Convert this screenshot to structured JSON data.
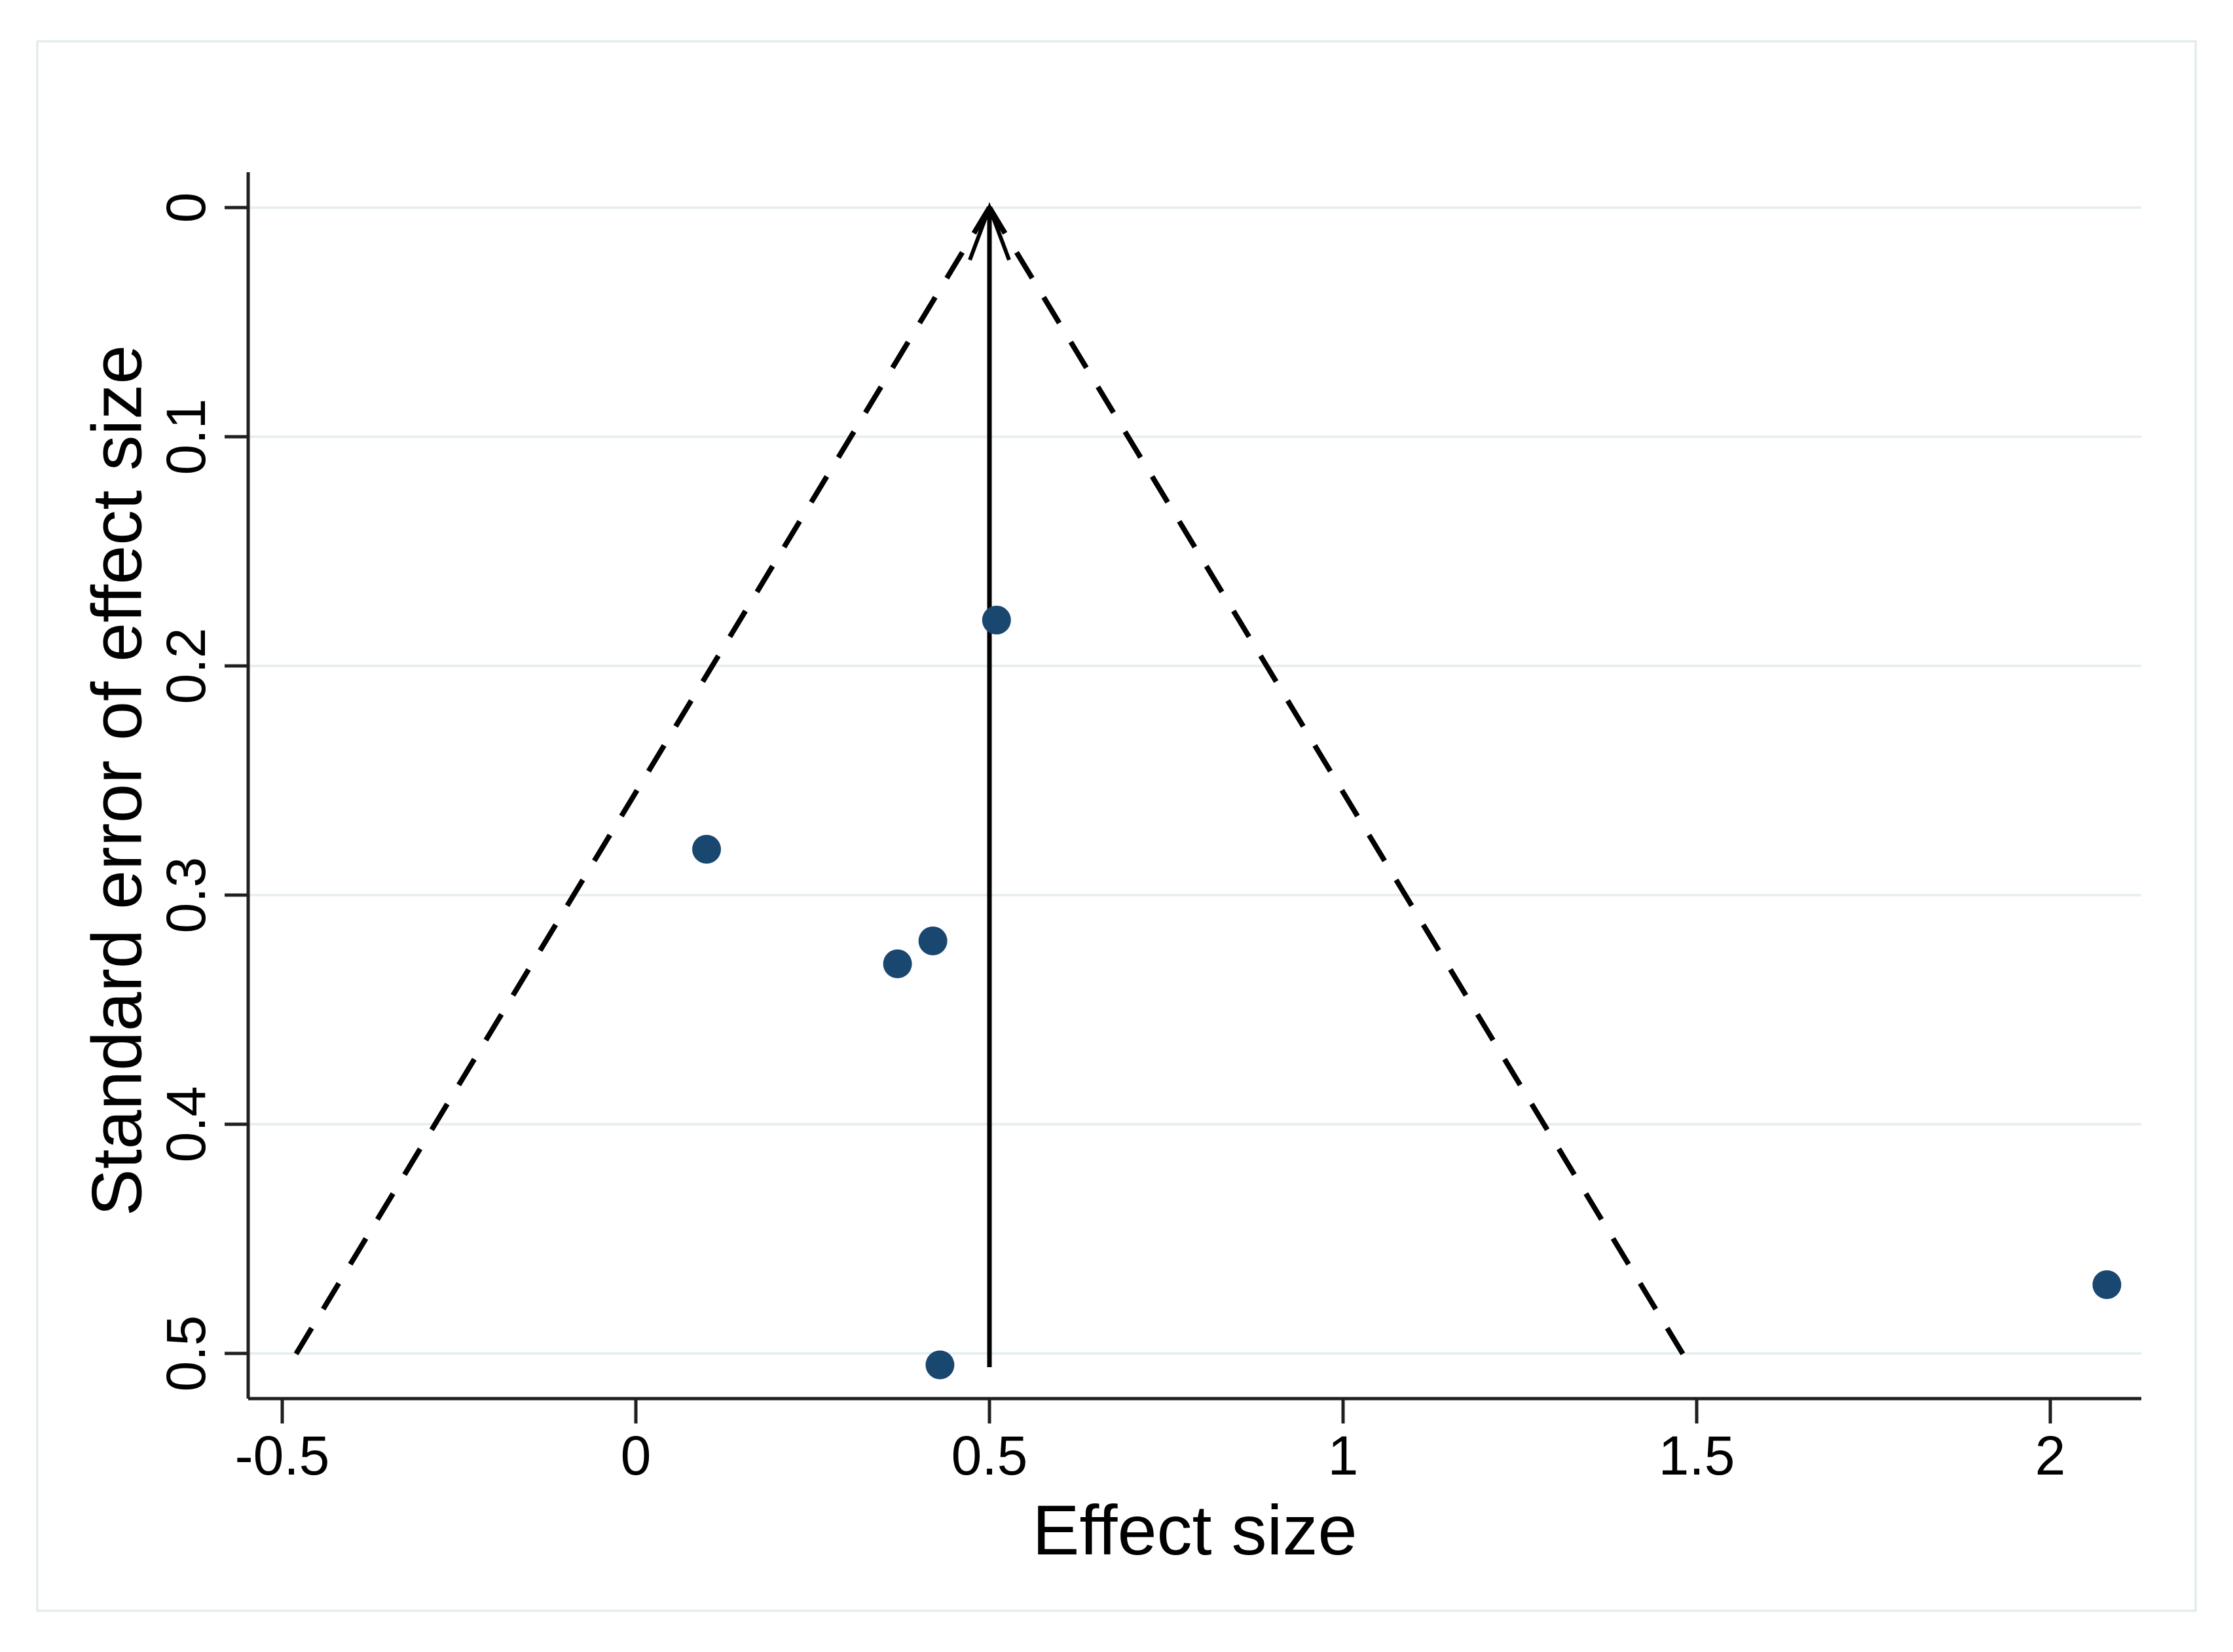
{
  "figure": {
    "background": "#ffffff",
    "border_color": "#dfe9ec"
  },
  "chart_data": {
    "type": "scatter",
    "title": "",
    "xlabel": "Effect size",
    "ylabel": "Standard error of effect size",
    "x_ticks": {
      "values": [
        -0.5,
        0,
        0.5,
        1,
        1.5,
        2
      ],
      "labels": [
        "-0.5",
        "0",
        "0.5",
        "1",
        "1.5",
        "2"
      ]
    },
    "y_ticks": {
      "values": [
        0,
        0.1,
        0.2,
        0.3,
        0.4,
        0.5
      ],
      "labels": [
        "0",
        "0.1",
        "0.2",
        "0.3",
        "0.4",
        "0.5"
      ]
    },
    "xlim": [
      -0.548,
      2.128
    ],
    "ylim": [
      0,
      0.52
    ],
    "y_axis_inverted": true,
    "grid": "horizontal",
    "legend": "none",
    "points": [
      {
        "x": 0.51,
        "se": 0.18
      },
      {
        "x": 0.1,
        "se": 0.28
      },
      {
        "x": 0.42,
        "se": 0.32
      },
      {
        "x": 0.37,
        "se": 0.33
      },
      {
        "x": 0.43,
        "se": 0.505
      },
      {
        "x": 2.08,
        "se": 0.47
      }
    ],
    "funnel": {
      "pooled_effect": 0.5,
      "ci_z": 1.96,
      "se_max": 0.506,
      "center_line_style": "solid-with-arrowhead",
      "ci_line_style": "dashed"
    },
    "colors": {
      "marker": "#1a476f",
      "grid": "#e7eff3",
      "axis": "#1f1f1f",
      "line": "#000000",
      "text": "#000000"
    }
  }
}
